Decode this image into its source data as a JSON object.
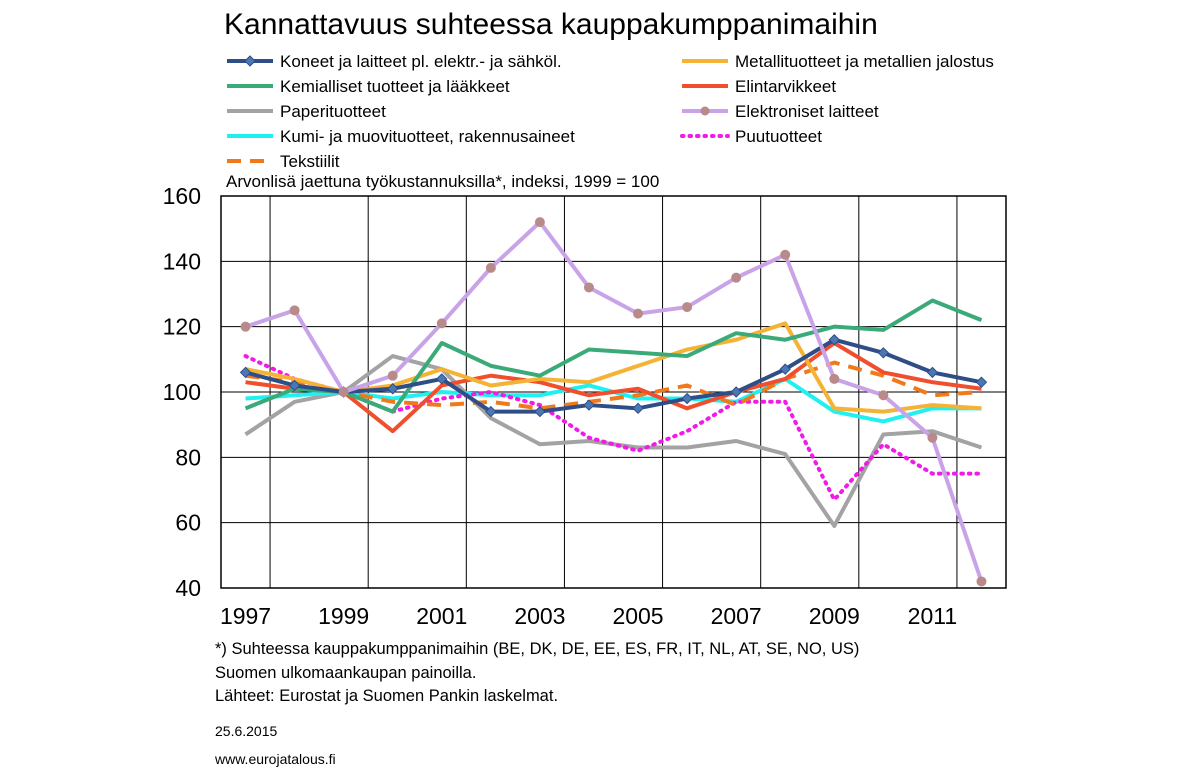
{
  "chart_data": {
    "type": "line",
    "title": "Kannattavuus suhteessa kauppakumppanimaihin",
    "subtitle": "Arvonlisä jaettuna työkustannuksilla*, indeksi, 1999 = 100",
    "x": [
      1997,
      1998,
      1999,
      2000,
      2001,
      2002,
      2003,
      2004,
      2005,
      2006,
      2007,
      2008,
      2009,
      2010,
      2011,
      2012
    ],
    "x_tick_labels": [
      "1997",
      "1999",
      "2001",
      "2003",
      "2005",
      "2007",
      "2009",
      "2011"
    ],
    "ylim": [
      40,
      160
    ],
    "y_ticks": [
      40,
      60,
      80,
      100,
      120,
      140,
      160
    ],
    "grid": "vertical and horizontal",
    "series": [
      {
        "name": "Koneet ja laitteet pl. elektr.- ja sähköl.",
        "color": "#2F4E87",
        "style": "solid",
        "marker": "diamond",
        "values": [
          106,
          102,
          100,
          101,
          104,
          94,
          94,
          96,
          95,
          98,
          100,
          107,
          116,
          112,
          106,
          103
        ]
      },
      {
        "name": "Metallituotteet ja metallien jalostus",
        "color": "#F5B335",
        "style": "solid",
        "marker": "none",
        "values": [
          107,
          104,
          100,
          102,
          107,
          102,
          104,
          103,
          108,
          113,
          116,
          121,
          95,
          94,
          96,
          95
        ]
      },
      {
        "name": "Kemialliset tuotteet ja lääkkeet",
        "color": "#3BAA79",
        "style": "solid",
        "marker": "none",
        "values": [
          95,
          101,
          100,
          94,
          115,
          108,
          105,
          113,
          112,
          111,
          118,
          116,
          120,
          119,
          128,
          122
        ]
      },
      {
        "name": "Elintarvikkeet",
        "color": "#F04E2D",
        "style": "solid",
        "marker": "none",
        "values": [
          103,
          101,
          100,
          88,
          102,
          105,
          103,
          99,
          101,
          95,
          100,
          104,
          115,
          106,
          103,
          101
        ]
      },
      {
        "name": "Paperituotteet",
        "color": "#A3A3A3",
        "style": "solid",
        "marker": "none",
        "values": [
          87,
          97,
          100,
          111,
          107,
          92,
          84,
          85,
          83,
          83,
          85,
          81,
          59,
          87,
          88,
          83
        ]
      },
      {
        "name": "Elektroniset laitteet",
        "color": "#C9A3E8",
        "style": "solid",
        "marker": "circle",
        "values": [
          120,
          125,
          100,
          105,
          121,
          138,
          152,
          132,
          124,
          126,
          135,
          142,
          104,
          99,
          86,
          42
        ]
      },
      {
        "name": "Kumi- ja muovituotteet, rakennusaineet",
        "color": "#21F0F0",
        "style": "solid",
        "marker": "none",
        "values": [
          98,
          99,
          100,
          98,
          100,
          99,
          99,
          102,
          98,
          98,
          97,
          104,
          94,
          91,
          95,
          95
        ]
      },
      {
        "name": "Puutuotteet",
        "color": "#F21BE6",
        "style": "dotted",
        "marker": "none",
        "values": [
          111,
          104,
          100,
          94,
          98,
          100,
          96,
          86,
          82,
          88,
          97,
          97,
          67,
          84,
          75,
          75
        ]
      },
      {
        "name": "Tekstiilit",
        "color": "#F07A1B",
        "style": "dashed",
        "marker": "none",
        "values": [
          105,
          103,
          100,
          97,
          96,
          97,
          95,
          97,
          99,
          102,
          96,
          104,
          109,
          105,
          99,
          100
        ]
      }
    ],
    "legend_position": "top, two columns"
  },
  "notes": {
    "footnote_lines": [
      "*) Suhteessa kauppakumppanimaihin  (BE, DK, DE, EE, ES, FR, IT, NL, AT, SE, NO, US)",
      "Suomen ulkomaankaupan  painoilla.",
      "Lähteet: Eurostat ja Suomen Pankin  laskelmat."
    ],
    "date": "25.6.2015",
    "website": "www.eurojatalous.fi"
  }
}
